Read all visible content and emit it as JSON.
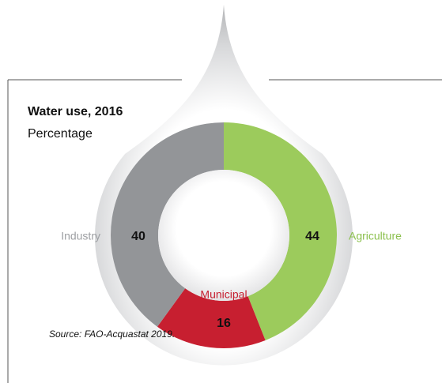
{
  "chart_data": {
    "type": "donut",
    "title": "Water use, 2016",
    "subtitle": "Percentage",
    "categories": [
      "Agriculture",
      "Municipal",
      "Industry"
    ],
    "values": [
      44,
      16,
      40
    ],
    "colors": [
      "#9ccb5c",
      "#c71f30",
      "#939598"
    ],
    "label_colors": [
      "#8cc04e",
      "#c71f30",
      "#9d9fa2"
    ],
    "source": "Source: FAO-Acquastat 2019."
  }
}
